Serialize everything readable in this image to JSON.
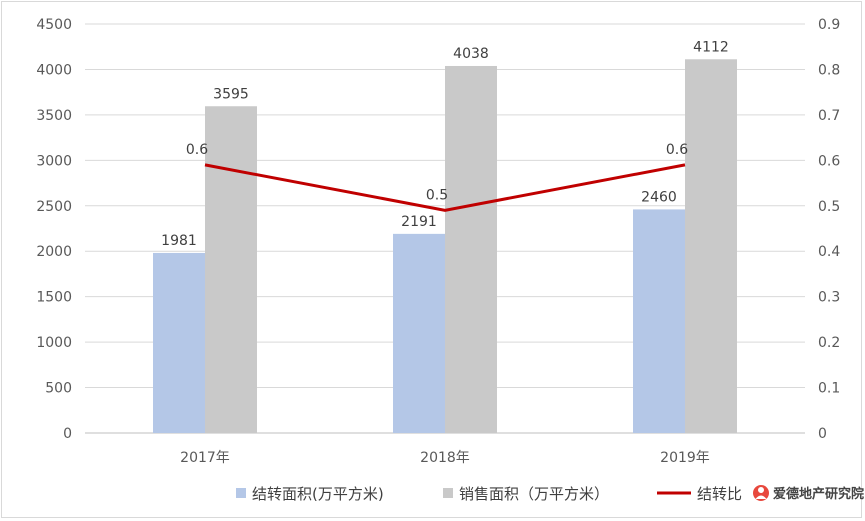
{
  "chart_data": {
    "type": "bar",
    "categories": [
      "2017年",
      "2018年",
      "2019年"
    ],
    "series": [
      {
        "name": "结转面积(万平方米)",
        "kind": "bar",
        "axis": "left",
        "color": "#b4c7e7",
        "values": [
          1981,
          2191,
          2460
        ]
      },
      {
        "name": "销售面积（万平方米）",
        "kind": "bar",
        "axis": "left",
        "color": "#c9c9c9",
        "values": [
          3595,
          4038,
          4112
        ]
      },
      {
        "name": "结转比",
        "kind": "line",
        "axis": "right",
        "color": "#c00000",
        "values": [
          0.59,
          0.49,
          0.59
        ],
        "labels": [
          "0.6",
          "0.5",
          "0.6"
        ]
      }
    ],
    "y_left": {
      "min": 0,
      "max": 4500,
      "ticks": [
        "0",
        "500",
        "1000",
        "1500",
        "2000",
        "2500",
        "3000",
        "3500",
        "4000",
        "4500"
      ]
    },
    "y_right": {
      "min": 0,
      "max": 0.9,
      "ticks": [
        "0",
        "0.1",
        "0.2",
        "0.3",
        "0.4",
        "0.5",
        "0.6",
        "0.7",
        "0.8",
        "0.9"
      ]
    },
    "grid": true,
    "legend": "bottom"
  },
  "watermark": {
    "text": "爱德地产研究院",
    "icon": "avatar-icon"
  }
}
